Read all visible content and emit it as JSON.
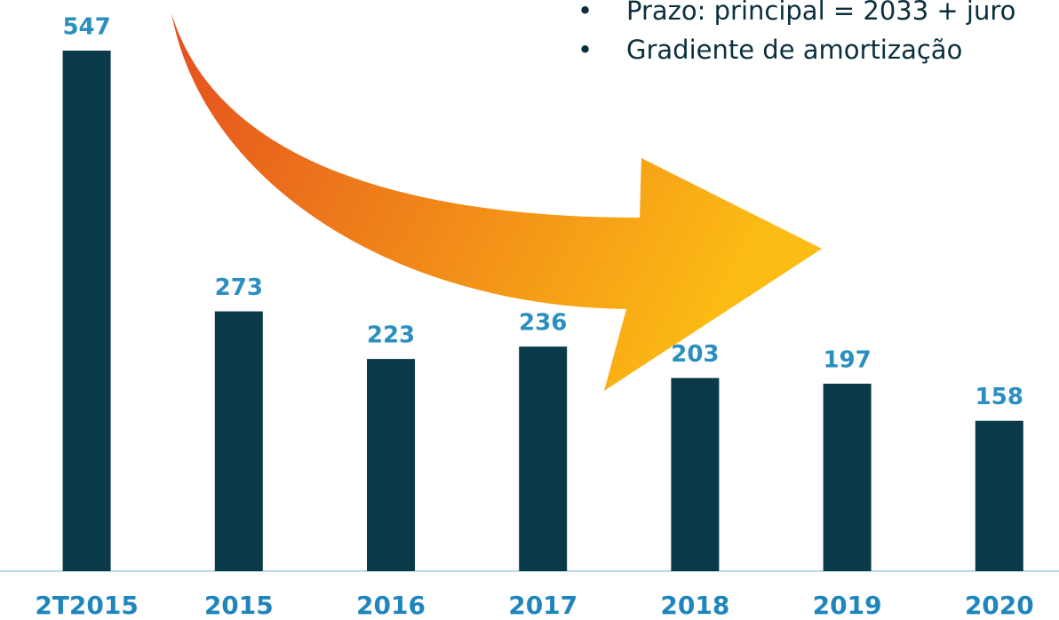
{
  "chart_data": {
    "type": "bar",
    "categories": [
      "2T2015",
      "2015",
      "2016",
      "2017",
      "2018",
      "2019",
      "2020"
    ],
    "values": [
      547,
      273,
      223,
      236,
      203,
      197,
      158
    ],
    "color": "#0a3a4a",
    "annotations": [
      "Prazo: principal = 2033 + juro",
      "Gradiente de amortização"
    ]
  }
}
